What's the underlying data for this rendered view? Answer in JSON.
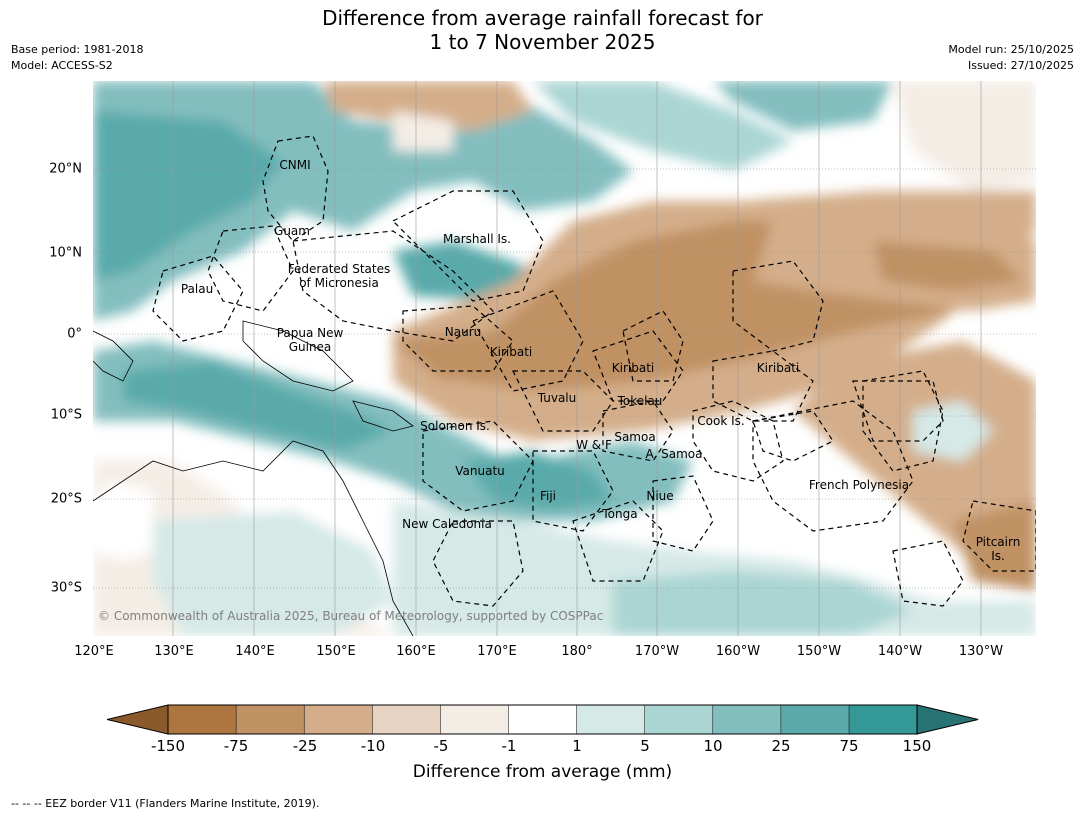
{
  "header": {
    "title_line1": "Difference from average rainfall forecast for",
    "title_line2": "1 to 7 November 2025",
    "base_period": "Base period: 1981-2018",
    "model": "Model: ACCESS-S2",
    "model_run": "Model run: 25/10/2025",
    "issued": "Issued: 27/10/2025"
  },
  "axes": {
    "longitude_ticks": [
      "120°E",
      "130°E",
      "140°E",
      "150°E",
      "160°E",
      "170°E",
      "180°",
      "170°W",
      "160°W",
      "150°W",
      "140°W",
      "130°W"
    ],
    "latitude_ticks": [
      "20°N",
      "10°N",
      "0°",
      "10°S",
      "20°S",
      "30°S"
    ]
  },
  "regions": {
    "cnmi": "CNMI",
    "guam": "Guam",
    "marshall": "Marshall Is.",
    "fsm": "Federated States\nof Micronesia",
    "palau": "Palau",
    "png": "Papua New\nGuinea",
    "nauru": "Nauru",
    "kiribati_w": "Kiribati",
    "kiribati_c": "Kiribati",
    "kiribati_e": "Kiribati",
    "tuvalu": "Tuvalu",
    "tokelau": "Tokelau",
    "solomon": "Solomon Is.",
    "wf": "W & F",
    "samoa": "Samoa",
    "asamoa": "A. Samoa",
    "cook": "Cook Is.",
    "vanuatu": "Vanuatu",
    "fiji": "Fiji",
    "niue": "Niue",
    "tonga": "Tonga",
    "fpoly": "French Polynesia",
    "newcal": "New Caledonia",
    "pitcairn": "Pitcairn\nIs."
  },
  "copyright": "© Commonwealth of Australia 2025, Bureau of Meteorology, supported by COSPPac",
  "colorbar": {
    "title": "Difference from average (mm)",
    "ticks": [
      "-150",
      "-75",
      "-25",
      "-10",
      "-5",
      "-1",
      "1",
      "5",
      "10",
      "25",
      "75",
      "150"
    ],
    "colors": [
      "#8b5a2b",
      "#ad7640",
      "#c09163",
      "#d4ae8a",
      "#e6d3c1",
      "#f4ede6",
      "#ffffff",
      "#d5e9e7",
      "#aad5d3",
      "#83bebf",
      "#5aaaab",
      "#349896",
      "#287373"
    ]
  },
  "footnote": "--  --  -- EEZ border V11 (Flanders Marine Institute, 2019)."
}
